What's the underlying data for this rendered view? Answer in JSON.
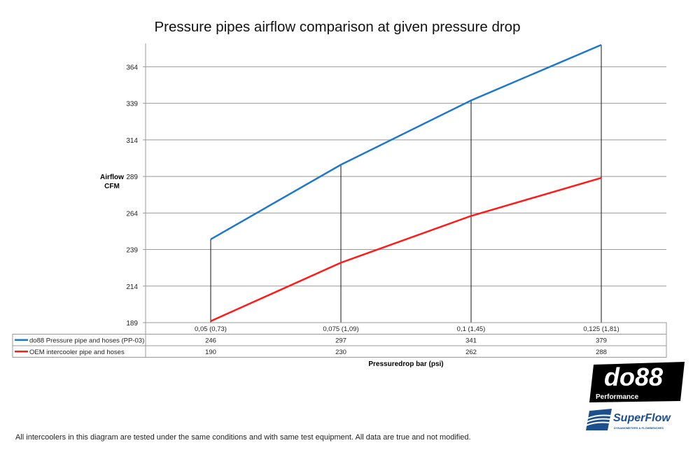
{
  "chart_data": {
    "type": "line",
    "title": "Pressure pipes airflow comparison at given pressure drop",
    "xlabel": "Pressuredrop bar (psi)",
    "ylabel": "Airflow\nCFM",
    "ylabel_lines": [
      "Airflow",
      "CFM"
    ],
    "categories": [
      "0,05 (0,73)",
      "0,075 (1,09)",
      "0,1 (1,45)",
      "0,125 (1,81)"
    ],
    "yticks": [
      189,
      214,
      239,
      264,
      289,
      314,
      339,
      364
    ],
    "ylim": [
      189,
      380
    ],
    "grid": "horizontal",
    "legend": "data-table-below",
    "drop_lines": true,
    "series": [
      {
        "name": "do88 Pressure pipe and hoses (PP-03)",
        "values": [
          246,
          297,
          341,
          379
        ],
        "color": "#1f77c8"
      },
      {
        "name": "OEM intercooler pipe and hoses",
        "values": [
          190,
          230,
          262,
          288
        ],
        "color": "#ff1a1a"
      }
    ]
  },
  "logos": {
    "do88": {
      "text": "do88",
      "subtext": "Performance"
    },
    "superflow": {
      "text": "SuperFlow",
      "subtext": "DYNAMOMETERS & FLOWBENCHES",
      "color": "#1c4f8c"
    }
  },
  "footer": "All intercoolers in this diagram are tested under the same conditions and with same test equipment. All data are true and not modified."
}
